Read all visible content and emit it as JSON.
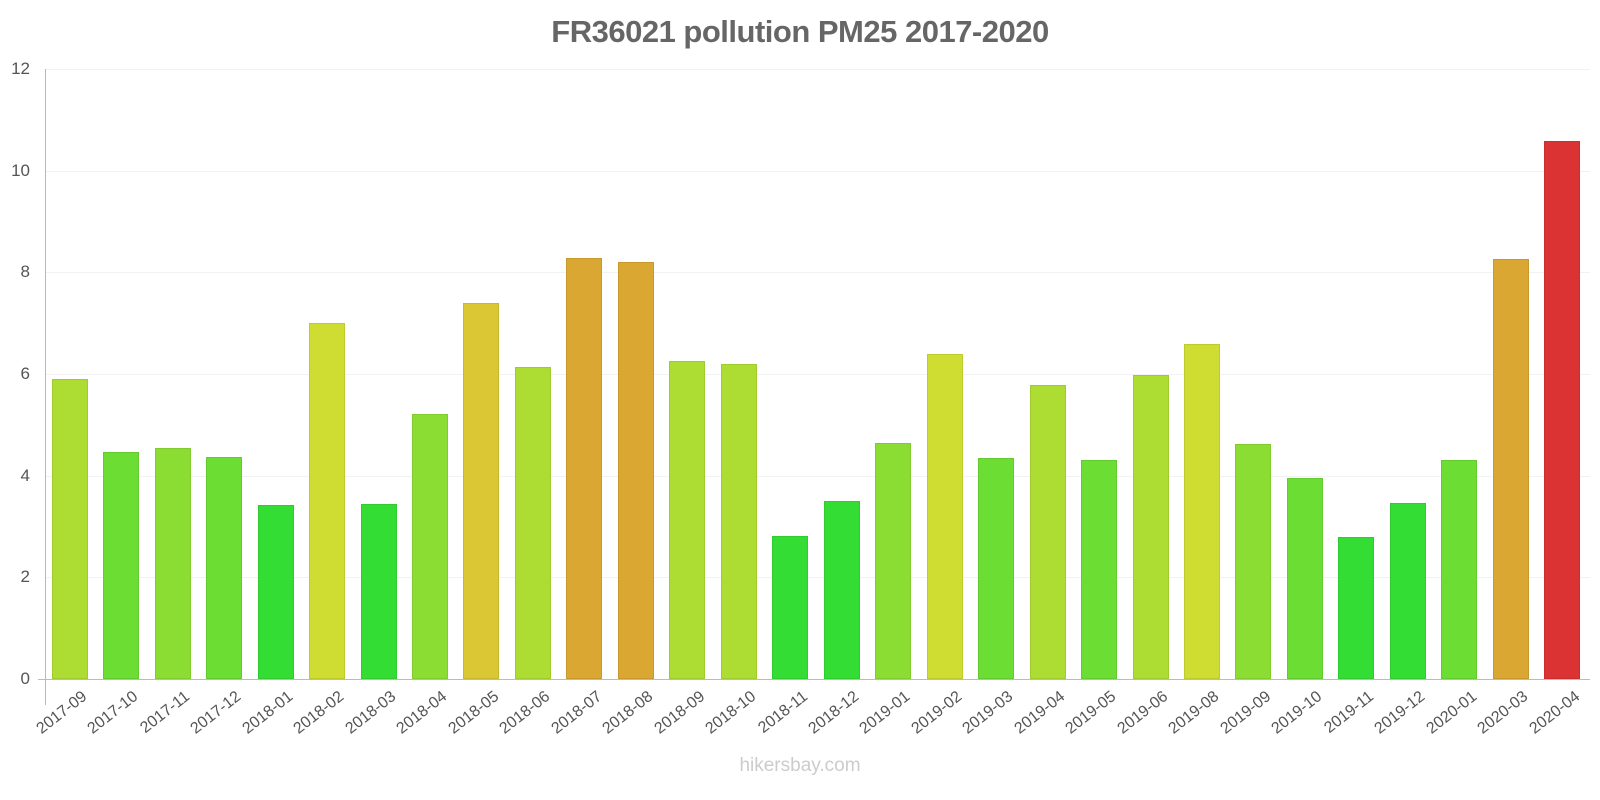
{
  "chart_data": {
    "type": "bar",
    "title": "FR36021 pollution PM25 2017-2020",
    "xlabel": "",
    "ylabel": "",
    "ylim": [
      0,
      12
    ],
    "yticks": [
      "0",
      "2",
      "4",
      "6",
      "8",
      "10",
      "12"
    ],
    "grid": true,
    "legend": null,
    "categories": [
      "2017-09",
      "2017-10",
      "2017-11",
      "2017-12",
      "2018-01",
      "2018-02",
      "2018-03",
      "2018-04",
      "2018-05",
      "2018-06",
      "2018-07",
      "2018-08",
      "2018-09",
      "2018-10",
      "2018-11",
      "2018-12",
      "2019-01",
      "2019-02",
      "2019-03",
      "2019-04",
      "2019-05",
      "2019-06",
      "2019-08",
      "2019-09",
      "2019-10",
      "2019-11",
      "2019-12",
      "2020-01",
      "2020-03",
      "2020-04"
    ],
    "values": [
      5.9,
      4.47,
      4.54,
      4.37,
      3.42,
      7.0,
      3.44,
      5.21,
      7.4,
      6.14,
      8.28,
      8.2,
      6.26,
      6.2,
      2.81,
      3.5,
      4.64,
      6.39,
      4.35,
      5.78,
      4.31,
      5.98,
      6.59,
      4.62,
      3.95,
      2.79,
      3.46,
      4.31,
      8.26,
      10.58
    ],
    "colors": [
      "#addd33",
      "#6cdd33",
      "#8cdd33",
      "#6cdd33",
      "#33dd33",
      "#cfdd33",
      "#33dd33",
      "#8cdd33",
      "#dbc733",
      "#addd33",
      "#dba733",
      "#dba733",
      "#addd33",
      "#addd33",
      "#33dd33",
      "#33dd33",
      "#8cdd33",
      "#cfdd33",
      "#6cdd33",
      "#addd33",
      "#6cdd33",
      "#addd33",
      "#cfdd33",
      "#8cdd33",
      "#6cdd33",
      "#33dd33",
      "#33dd33",
      "#6cdd33",
      "#dba733",
      "#db3333"
    ]
  },
  "watermark": "hikersbay.com"
}
